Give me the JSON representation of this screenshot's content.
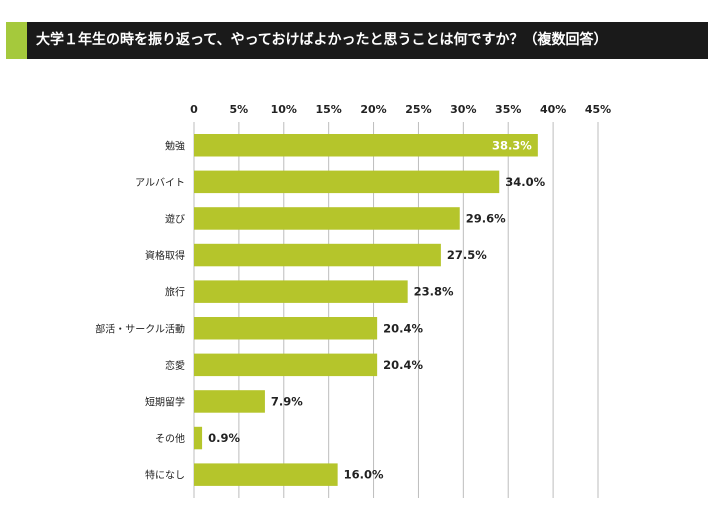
{
  "header": {
    "title": "大学１年生の時を振り返って、やっておけばよかったと思うことは何ですか？（複数回答）"
  },
  "colors": {
    "header_bg": "#1a1a1a",
    "accent": "#a5c93c",
    "bar": "#b5c52b",
    "grid": "#bdbdbd"
  },
  "chart_data": {
    "type": "bar",
    "orientation": "horizontal",
    "title": "大学１年生の時を振り返って、やっておけばよかったと思うことは何ですか？（複数回答）",
    "categories": [
      "勉強",
      "アルバイト",
      "遊び",
      "資格取得",
      "旅行",
      "部活・サークル活動",
      "恋愛",
      "短期留学",
      "その他",
      "特になし"
    ],
    "values": [
      38.3,
      34.0,
      29.6,
      27.5,
      23.8,
      20.4,
      20.4,
      7.9,
      0.9,
      16.0
    ],
    "value_labels": [
      "38.3%",
      "34.0%",
      "29.6%",
      "27.5%",
      "23.8%",
      "20.4%",
      "20.4%",
      "7.9%",
      "0.9%",
      "16.0%"
    ],
    "xlim": [
      0,
      45
    ],
    "ticks": [
      0,
      5,
      10,
      15,
      20,
      25,
      30,
      35,
      40,
      45
    ],
    "tick_labels": [
      "0",
      "5%",
      "10%",
      "15%",
      "20%",
      "25%",
      "30%",
      "35%",
      "40%",
      "45%"
    ],
    "axis_position": "top",
    "grid": true,
    "legend": "none"
  }
}
